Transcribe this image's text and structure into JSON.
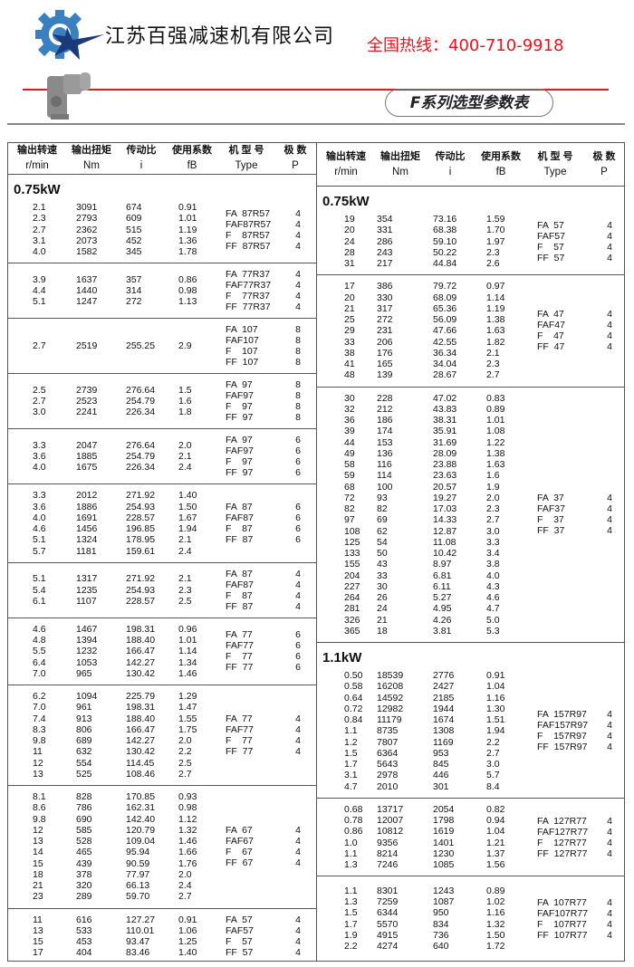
{
  "header": {
    "company": "江苏百强减速机有限公司",
    "hotline": "全国热线：400-710-9918",
    "title": "F系列选型参数表",
    "colors": {
      "red": "#e8141c",
      "logo_blue": "#3a80c0",
      "logo_navy": "#1a3a7a"
    }
  },
  "table_header": {
    "labels": [
      "输出转速",
      "输出扭矩",
      "传动比",
      "使用系数",
      "机 型 号",
      "极  数"
    ],
    "units": [
      "r/min",
      "Nm",
      "i",
      "fB",
      "Type",
      "P"
    ]
  },
  "columns": [
    {
      "blocks": [
        {
          "title": "0.75kW",
          "rows": [
            [
              "2.1",
              "3091",
              "674",
              "0.91"
            ],
            [
              "2.3",
              "2793",
              "609",
              "1.01"
            ],
            [
              "2.7",
              "2362",
              "515",
              "1.19"
            ],
            [
              "3.1",
              "2073",
              "452",
              "1.36"
            ],
            [
              "4.0",
              "1582",
              "345",
              "1.78"
            ]
          ],
          "types": [
            "FA  87R57",
            "FAF87R57",
            "F    87R57",
            "FF  87R57"
          ],
          "poles": [
            "4",
            "4",
            "4",
            "4"
          ]
        },
        {
          "rows": [
            [
              "3.9",
              "1637",
              "357",
              "0.86"
            ],
            [
              "4.4",
              "1440",
              "314",
              "0.98"
            ],
            [
              "5.1",
              "1247",
              "272",
              "1.13"
            ]
          ],
          "types": [
            "FA  77R37",
            "FAF77R37",
            "F    77R37",
            "FF  77R37"
          ],
          "poles": [
            "4",
            "4",
            "4",
            "4"
          ]
        },
        {
          "rows": [
            [
              "2.7",
              "2519",
              "255.25",
              "2.9"
            ]
          ],
          "types": [
            "FA  107",
            "FAF107",
            "F    107",
            "FF  107"
          ],
          "poles": [
            "8",
            "8",
            "8",
            "8"
          ]
        },
        {
          "rows": [
            [
              "2.5",
              "2739",
              "276.64",
              "1.5"
            ],
            [
              "2.7",
              "2523",
              "254.79",
              "1.6"
            ],
            [
              "3.0",
              "2241",
              "226.34",
              "1.8"
            ]
          ],
          "types": [
            "FA  97",
            "FAF97",
            "F    97",
            "FF  97"
          ],
          "poles": [
            "8",
            "8",
            "8",
            "8"
          ]
        },
        {
          "rows": [
            [
              "3.3",
              "2047",
              "276.64",
              "2.0"
            ],
            [
              "3.6",
              "1885",
              "254.79",
              "2.1"
            ],
            [
              "4.0",
              "1675",
              "226.34",
              "2.4"
            ]
          ],
          "types": [
            "FA  97",
            "FAF97",
            "F    97",
            "FF  97"
          ],
          "poles": [
            "6",
            "6",
            "6",
            "6"
          ]
        },
        {
          "rows": [
            [
              "3.3",
              "2012",
              "271.92",
              "1.40"
            ],
            [
              "3.6",
              "1886",
              "254.93",
              "1.50"
            ],
            [
              "4.0",
              "1691",
              "228.57",
              "1.67"
            ],
            [
              "4.6",
              "1456",
              "196.85",
              "1.94"
            ],
            [
              "5.1",
              "1324",
              "178.95",
              "2.1"
            ],
            [
              "5.7",
              "1181",
              "159.61",
              "2.4"
            ]
          ],
          "types": [
            "FA  87",
            "FAF87",
            "F    87",
            "FF  87"
          ],
          "poles": [
            "6",
            "6",
            "6",
            "6"
          ]
        },
        {
          "rows": [
            [
              "5.1",
              "1317",
              "271.92",
              "2.1"
            ],
            [
              "5.4",
              "1235",
              "254.93",
              "2.3"
            ],
            [
              "6.1",
              "1107",
              "228.57",
              "2.5"
            ]
          ],
          "types": [
            "FA  87",
            "FAF87",
            "F    87",
            "FF  87"
          ],
          "poles": [
            "4",
            "4",
            "4",
            "4"
          ]
        },
        {
          "rows": [
            [
              "4.6",
              "1467",
              "198.31",
              "0.96"
            ],
            [
              "4.8",
              "1394",
              "188.40",
              "1.01"
            ],
            [
              "5.5",
              "1232",
              "166.47",
              "1.14"
            ],
            [
              "6.4",
              "1053",
              "142.27",
              "1.34"
            ],
            [
              "7.0",
              "965",
              "130.42",
              "1.46"
            ]
          ],
          "types": [
            "FA  77",
            "FAF77",
            "F    77",
            "FF  77"
          ],
          "poles": [
            "6",
            "6",
            "6",
            "6"
          ]
        },
        {
          "rows": [
            [
              "6.2",
              "1094",
              "225.79",
              "1.29"
            ],
            [
              "7.0",
              "961",
              "198.31",
              "1.47"
            ],
            [
              "7.4",
              "913",
              "188.40",
              "1.55"
            ],
            [
              "8.3",
              "806",
              "166.47",
              "1.75"
            ],
            [
              "9.8",
              "689",
              "142.27",
              "2.0"
            ],
            [
              "11",
              "632",
              "130.42",
              "2.2"
            ],
            [
              "12",
              "554",
              "114.45",
              "2.5"
            ],
            [
              "13",
              "525",
              "108.46",
              "2.7"
            ]
          ],
          "types": [
            "FA  77",
            "FAF77",
            "F    77",
            "FF  77"
          ],
          "poles": [
            "4",
            "4",
            "4",
            "4"
          ]
        },
        {
          "rows": [
            [
              "8.1",
              "828",
              "170.85",
              "0.93"
            ],
            [
              "8.6",
              "786",
              "162.31",
              "0.98"
            ],
            [
              "9.8",
              "690",
              "142.40",
              "1.12"
            ],
            [
              "12",
              "585",
              "120.79",
              "1.32"
            ],
            [
              "13",
              "528",
              "109.04",
              "1.46"
            ],
            [
              "14",
              "465",
              "95.94",
              "1.66"
            ],
            [
              "15",
              "439",
              "90.59",
              "1.76"
            ],
            [
              "18",
              "378",
              "77.97",
              "2.0"
            ],
            [
              "21",
              "320",
              "66.13",
              "2.4"
            ],
            [
              "23",
              "289",
              "59.70",
              "2.7"
            ]
          ],
          "types": [
            "FA  67",
            "FAF67",
            "F    67",
            "FF  67"
          ],
          "poles": [
            "4",
            "4",
            "4",
            "4"
          ]
        },
        {
          "rows": [
            [
              "11",
              "616",
              "127.27",
              "0.91"
            ],
            [
              "13",
              "533",
              "110.01",
              "1.06"
            ],
            [
              "15",
              "453",
              "93.47",
              "1.25"
            ],
            [
              "17",
              "404",
              "83.46",
              "1.40"
            ]
          ],
          "types": [
            "FA  57",
            "FAF57",
            "F    57",
            "FF  57"
          ],
          "poles": [
            "4",
            "4",
            "4",
            "4"
          ]
        }
      ]
    },
    {
      "blocks": [
        {
          "title": "0.75kW",
          "rows": [
            [
              "19",
              "354",
              "73.16",
              "1.59"
            ],
            [
              "20",
              "331",
              "68.38",
              "1.70"
            ],
            [
              "24",
              "286",
              "59.10",
              "1.97"
            ],
            [
              "28",
              "243",
              "50.22",
              "2.3"
            ],
            [
              "31",
              "217",
              "44.84",
              "2.6"
            ]
          ],
          "types": [
            "FA  57",
            "FAF57",
            "F    57",
            "FF  57"
          ],
          "poles": [
            "4",
            "4",
            "4",
            "4"
          ]
        },
        {
          "rows": [
            [
              "17",
              "386",
              "79.72",
              "0.97"
            ],
            [
              "20",
              "330",
              "68.09",
              "1.14"
            ],
            [
              "21",
              "317",
              "65.36",
              "1.19"
            ],
            [
              "25",
              "272",
              "56.09",
              "1.38"
            ],
            [
              "29",
              "231",
              "47.66",
              "1.63"
            ],
            [
              "33",
              "206",
              "42.55",
              "1.82"
            ],
            [
              "38",
              "176",
              "36.34",
              "2.1"
            ],
            [
              "41",
              "165",
              "34.04",
              "2.3"
            ],
            [
              "48",
              "139",
              "28.67",
              "2.7"
            ]
          ],
          "types": [
            "FA  47",
            "FAF47",
            "F    47",
            "FF  47"
          ],
          "poles": [
            "4",
            "4",
            "4",
            "4"
          ]
        },
        {
          "rows": [
            [
              "30",
              "228",
              "47.02",
              "0.83"
            ],
            [
              "32",
              "212",
              "43.83",
              "0.89"
            ],
            [
              "36",
              "186",
              "38.31",
              "1.01"
            ],
            [
              "39",
              "174",
              "35.91",
              "1.08"
            ],
            [
              "44",
              "153",
              "31.69",
              "1.22"
            ],
            [
              "49",
              "136",
              "28.09",
              "1.38"
            ],
            [
              "58",
              "116",
              "23.88",
              "1.63"
            ],
            [
              "59",
              "114",
              "23.63",
              "1.6"
            ],
            [
              "68",
              "100",
              "20.57",
              "1.9"
            ],
            [
              "72",
              "93",
              "19.27",
              "2.0"
            ],
            [
              "82",
              "82",
              "17.03",
              "2.3"
            ],
            [
              "97",
              "69",
              "14.33",
              "2.7"
            ],
            [
              "108",
              "62",
              "12.87",
              "3.0"
            ],
            [
              "125",
              "54",
              "11.08",
              "3.3"
            ],
            [
              "133",
              "50",
              "10.42",
              "3.4"
            ],
            [
              "155",
              "43",
              "8.97",
              "3.8"
            ],
            [
              "204",
              "33",
              "6.81",
              "4.0"
            ],
            [
              "227",
              "30",
              "6.11",
              "4.3"
            ],
            [
              "264",
              "26",
              "5.27",
              "4.6"
            ],
            [
              "281",
              "24",
              "4.95",
              "4.7"
            ],
            [
              "326",
              "21",
              "4.26",
              "5.0"
            ],
            [
              "365",
              "18",
              "3.81",
              "5.3"
            ]
          ],
          "types": [
            "FA  37",
            "FAF37",
            "F    37",
            "FF  37"
          ],
          "poles": [
            "4",
            "4",
            "4",
            "4"
          ]
        },
        {
          "title": "1.1kW",
          "rows": [
            [
              "0.50",
              "18539",
              "2776",
              "0.91"
            ],
            [
              "0.58",
              "16208",
              "2427",
              "1.04"
            ],
            [
              "0.64",
              "14592",
              "2185",
              "1.16"
            ],
            [
              "0.72",
              "12982",
              "1944",
              "1.30"
            ],
            [
              "0.84",
              "11179",
              "1674",
              "1.51"
            ],
            [
              "1.1",
              "8735",
              "1308",
              "1.94"
            ],
            [
              "1.2",
              "7807",
              "1169",
              "2.2"
            ],
            [
              "1.5",
              "6364",
              "953",
              "2.7"
            ],
            [
              "1.7",
              "5643",
              "845",
              "3.0"
            ],
            [
              "3.1",
              "2978",
              "446",
              "5.7"
            ],
            [
              "4.7",
              "2010",
              "301",
              "8.4"
            ]
          ],
          "types": [
            "FA  157R97",
            "FAF157R97",
            "F    157R97",
            "FF  157R97"
          ],
          "poles": [
            "4",
            "4",
            "4",
            "4"
          ]
        },
        {
          "rows": [
            [
              "0.68",
              "13717",
              "2054",
              "0.82"
            ],
            [
              "0.78",
              "12007",
              "1798",
              "0.94"
            ],
            [
              "0.86",
              "10812",
              "1619",
              "1.04"
            ],
            [
              "1.0",
              "9356",
              "1401",
              "1.21"
            ],
            [
              "1.1",
              "8214",
              "1230",
              "1.37"
            ],
            [
              "1.3",
              "7246",
              "1085",
              "1.56"
            ]
          ],
          "types": [
            "FA  127R77",
            "FAF127R77",
            "F    127R77",
            "FF  127R77"
          ],
          "poles": [
            "4",
            "4",
            "4",
            "4"
          ]
        },
        {
          "rows": [
            [
              "1.1",
              "8301",
              "1243",
              "0.89"
            ],
            [
              "1.3",
              "7259",
              "1087",
              "1.02"
            ],
            [
              "1.5",
              "6344",
              "950",
              "1.16"
            ],
            [
              "1.7",
              "5570",
              "834",
              "1.32"
            ],
            [
              "1.9",
              "4915",
              "736",
              "1.50"
            ],
            [
              "2.2",
              "4274",
              "640",
              "1.72"
            ]
          ],
          "types": [
            "FA  107R77",
            "FAF107R77",
            "F    107R77",
            "FF  107R77"
          ],
          "poles": [
            "4",
            "4",
            "4",
            "4"
          ]
        }
      ]
    }
  ]
}
